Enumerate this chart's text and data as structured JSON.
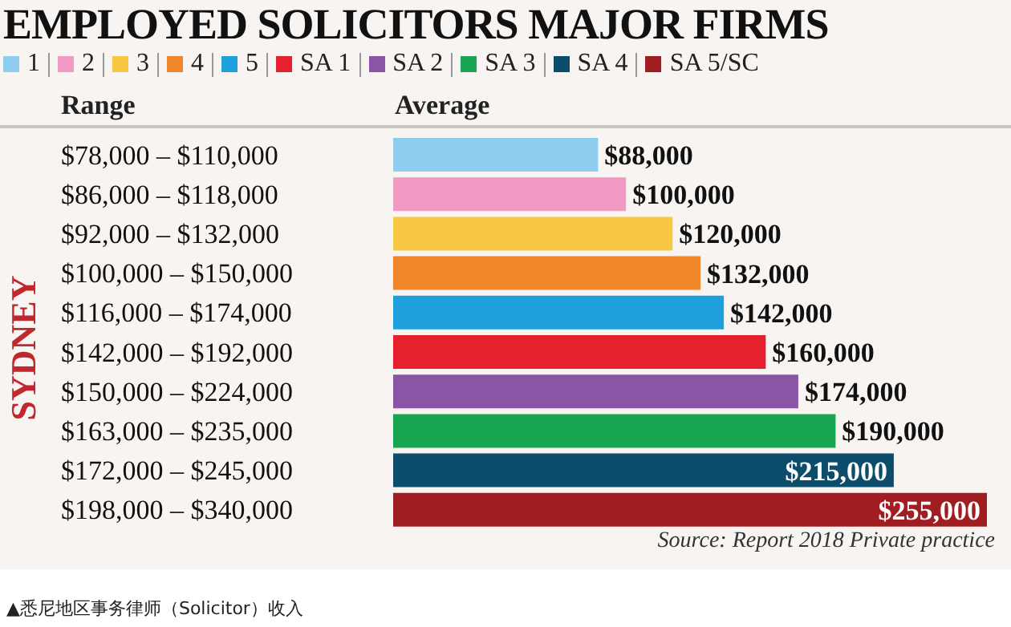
{
  "chart_data": {
    "type": "bar",
    "orientation": "horizontal",
    "stacked": true,
    "title": "EMPLOYED SOLICITORS MAJOR FIRMS",
    "legend": "top",
    "categories": [
      "$78,000 – $110,000",
      "$86,000 – $118,000",
      "$92,000 – $132,000",
      "$100,000 – $150,000",
      "$116,000 – $174,000",
      "$142,000 – $192,000",
      "$150,000 – $224,000",
      "$163,000 – $235,000",
      "$172,000 – $245,000",
      "$198,000 – $340,000"
    ],
    "series": [
      {
        "name": "1",
        "color": "#8ecdf0",
        "values": [
          88000,
          null,
          null,
          null,
          null,
          null,
          null,
          null,
          null,
          null
        ],
        "value_labels": [
          "$88,000",
          null,
          null,
          null,
          null,
          null,
          null,
          null,
          null,
          null
        ]
      },
      {
        "name": "2",
        "color": "#f19ac4",
        "values": [
          null,
          100000,
          null,
          null,
          null,
          null,
          null,
          null,
          null,
          null
        ],
        "value_labels": [
          null,
          "$100,000",
          null,
          null,
          null,
          null,
          null,
          null,
          null,
          null
        ]
      },
      {
        "name": "3",
        "color": "#f9c843",
        "values": [
          null,
          null,
          120000,
          null,
          null,
          null,
          null,
          null,
          null,
          null
        ],
        "value_labels": [
          null,
          null,
          "$120,000",
          null,
          null,
          null,
          null,
          null,
          null,
          null
        ]
      },
      {
        "name": "4",
        "color": "#ef8629",
        "values": [
          null,
          null,
          null,
          132000,
          null,
          null,
          null,
          null,
          null,
          null
        ],
        "value_labels": [
          null,
          null,
          null,
          "$132,000",
          null,
          null,
          null,
          null,
          null,
          null
        ]
      },
      {
        "name": "5",
        "color": "#1ea0dc",
        "values": [
          null,
          null,
          null,
          null,
          142000,
          null,
          null,
          null,
          null,
          null
        ],
        "value_labels": [
          null,
          null,
          null,
          null,
          "$142,000",
          null,
          null,
          null,
          null,
          null
        ]
      },
      {
        "name": "SA 1",
        "color": "#e5212e",
        "values": [
          null,
          null,
          null,
          null,
          null,
          160000,
          null,
          null,
          null,
          null
        ],
        "value_labels": [
          null,
          null,
          null,
          null,
          null,
          "$160,000",
          null,
          null,
          null,
          null
        ]
      },
      {
        "name": "SA 2",
        "color": "#8b55a6",
        "values": [
          null,
          null,
          null,
          null,
          null,
          null,
          174000,
          null,
          null,
          null
        ],
        "value_labels": [
          null,
          null,
          null,
          null,
          null,
          null,
          "$174,000",
          null,
          null,
          null
        ]
      },
      {
        "name": "SA 3",
        "color": "#18a551",
        "values": [
          null,
          null,
          null,
          null,
          null,
          null,
          null,
          190000,
          null,
          null
        ],
        "value_labels": [
          null,
          null,
          null,
          null,
          null,
          null,
          null,
          "$190,000",
          null,
          null
        ]
      },
      {
        "name": "SA 4",
        "color": "#0c4d6b",
        "values": [
          null,
          null,
          null,
          null,
          null,
          null,
          null,
          null,
          215000,
          null
        ],
        "value_labels": [
          null,
          null,
          null,
          null,
          null,
          null,
          null,
          null,
          "$215,000",
          null
        ]
      },
      {
        "name": "SA 5/SC",
        "color": "#a01d22",
        "values": [
          null,
          null,
          null,
          null,
          null,
          null,
          null,
          null,
          null,
          255000
        ],
        "value_labels": [
          null,
          null,
          null,
          null,
          null,
          null,
          null,
          null,
          null,
          "$255,000"
        ]
      }
    ],
    "annotations": [
      "Range",
      "Average",
      "SYDNEY",
      "Source: Report 2018 Private practice",
      "▲悉尼地区事务律师（Solicitor）收入"
    ]
  }
}
